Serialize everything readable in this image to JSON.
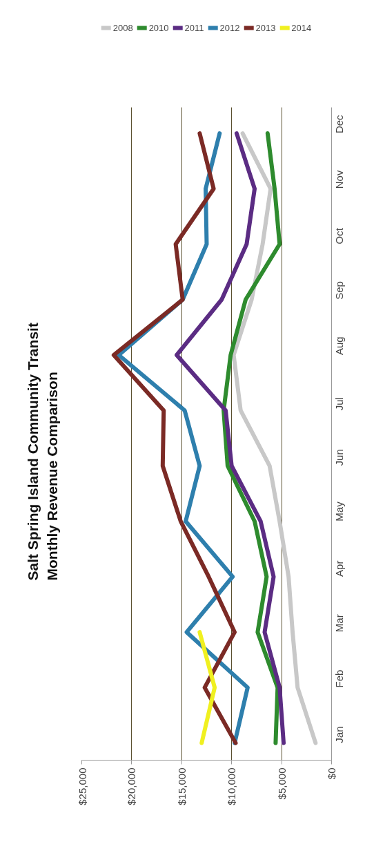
{
  "chart_data": {
    "type": "line",
    "title": "Salt Spring Island Community Transit",
    "subtitle": "Monthly Revenue Comparison",
    "orientation": "horizontal",
    "categories": [
      "Dec",
      "Nov",
      "Oct",
      "Sep",
      "Aug",
      "Jul",
      "Jun",
      "May",
      "Apr",
      "Mar",
      "Feb",
      "Jan"
    ],
    "series": [
      {
        "name": "2008",
        "color": "#c8c8c8",
        "values": [
          8900,
          6100,
          6900,
          8000,
          9800,
          9100,
          6200,
          5200,
          4300,
          3900,
          3400,
          1600
        ]
      },
      {
        "name": "2010",
        "color": "#2e8b2e",
        "values": [
          6400,
          5700,
          5200,
          8600,
          10100,
          10800,
          10400,
          7700,
          6500,
          7400,
          5400,
          5600
        ]
      },
      {
        "name": "2011",
        "color": "#5b2c83",
        "values": [
          9500,
          7700,
          8500,
          11000,
          15500,
          10600,
          10000,
          7100,
          5800,
          6700,
          5200,
          4800
        ]
      },
      {
        "name": "2012",
        "color": "#2e7fad",
        "values": [
          11200,
          12600,
          12500,
          14900,
          21300,
          14700,
          13200,
          14600,
          9900,
          14500,
          8400,
          9700
        ]
      },
      {
        "name": "2013",
        "color": "#7b2a25",
        "values": [
          13200,
          11800,
          15600,
          14900,
          21800,
          16800,
          16900,
          15100,
          12300,
          9700,
          12700,
          9600
        ]
      },
      {
        "name": "2014",
        "color": "#f0f020",
        "values": [
          null,
          null,
          null,
          null,
          null,
          null,
          null,
          null,
          null,
          13200,
          11700,
          13000
        ]
      }
    ],
    "xlim": [
      25000,
      0
    ],
    "xticks": [
      {
        "value": 25000,
        "label": "$25,000"
      },
      {
        "value": 20000,
        "label": "$20,000"
      },
      {
        "value": 15000,
        "label": "$15,000"
      },
      {
        "value": 10000,
        "label": "$10,000"
      },
      {
        "value": 5000,
        "label": "$5,000"
      },
      {
        "value": 0,
        "label": "$0"
      }
    ],
    "grid": "x",
    "legend": "top",
    "marker": "none",
    "line_style": "solid"
  }
}
